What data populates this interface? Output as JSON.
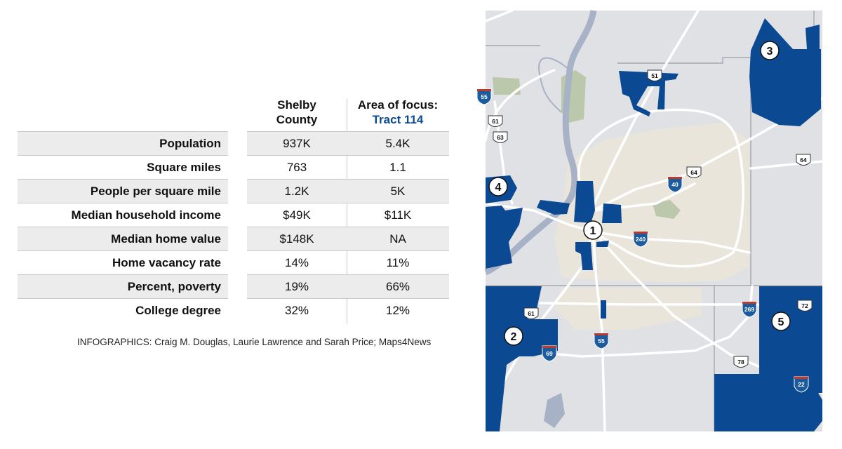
{
  "table": {
    "columns": [
      {
        "line1": "Shelby",
        "line2": "County"
      },
      {
        "line1": "Area of  focus:",
        "line2": "Tract 114"
      }
    ],
    "rows": [
      {
        "label": "Population",
        "county": "937K",
        "tract": "5.4K"
      },
      {
        "label": "Square miles",
        "county": "763",
        "tract": "1.1"
      },
      {
        "label": "People per square mile",
        "county": "1.2K",
        "tract": "5K"
      },
      {
        "label": "Median household income",
        "county": "$49K",
        "tract": "$11K"
      },
      {
        "label": "Median home value",
        "county": "$148K",
        "tract": "NA"
      },
      {
        "label": "Home vacancy rate",
        "county": "14%",
        "tract": "11%"
      },
      {
        "label": "Percent, poverty",
        "county": "19%",
        "tract": "66%"
      },
      {
        "label": "College degree",
        "county": "32%",
        "tract": "12%"
      }
    ],
    "accent_color": "#0b4a92"
  },
  "credit": "INFOGRAPHICS: Craig M. Douglas, Laurie Lawrence and Sarah Price; Maps4News",
  "map": {
    "highlight_color": "#0b4a92",
    "area_markers": [
      "1",
      "2",
      "3",
      "4",
      "5"
    ],
    "us_route_shields": [
      "51",
      "61",
      "63",
      "64",
      "64",
      "72",
      "61",
      "78"
    ],
    "interstate_shields": [
      "55",
      "40",
      "240",
      "269",
      "55",
      "69",
      "22"
    ]
  }
}
